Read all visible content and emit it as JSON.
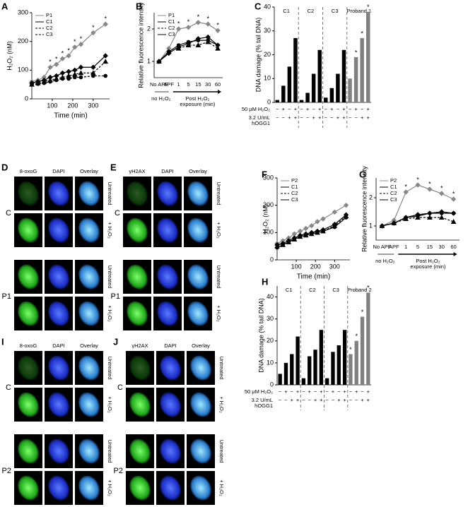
{
  "chart_data": [
    {
      "panel": "A",
      "type": "line",
      "ylabel": "H₂O₂ (nM)",
      "xlabel": "Time (min)",
      "x": [
        0,
        30,
        60,
        90,
        120,
        150,
        180,
        210,
        240,
        300,
        360
      ],
      "xlim": [
        0,
        380
      ],
      "xticks": [
        100,
        200,
        300
      ],
      "ylim": [
        0,
        300
      ],
      "yticks": [
        0,
        100,
        200,
        300
      ],
      "series": [
        {
          "name": "P1",
          "color": "#888888",
          "marker": "diamond",
          "dash": false,
          "values": [
            60,
            65,
            75,
            110,
            120,
            140,
            150,
            180,
            190,
            230,
            260
          ]
        },
        {
          "name": "C1",
          "color": "#000000",
          "marker": "diamond",
          "dash": false,
          "values": [
            55,
            60,
            65,
            75,
            80,
            90,
            95,
            100,
            110,
            110,
            150
          ]
        },
        {
          "name": "C2",
          "color": "#000000",
          "marker": "triangle",
          "dash": true,
          "values": [
            50,
            55,
            60,
            65,
            70,
            75,
            80,
            85,
            90,
            90,
            130
          ]
        },
        {
          "name": "C3",
          "color": "#000000",
          "marker": "circle",
          "dash": true,
          "values": [
            50,
            52,
            55,
            60,
            65,
            70,
            70,
            75,
            75,
            80,
            80
          ]
        }
      ],
      "annotations": [
        null,
        null,
        null,
        "*",
        "*",
        "*",
        "*",
        "*",
        "*",
        "*",
        "*"
      ]
    },
    {
      "panel": "B",
      "type": "line",
      "ylabel": "Relative fluorescence intensity",
      "categories": [
        "No APF",
        "APF",
        "1",
        "5",
        "15",
        "30",
        "60"
      ],
      "x_groups": [
        {
          "label": [
            "no H₂O₂"
          ],
          "span": [
            0,
            1
          ]
        },
        {
          "label": [
            "Post H₂O₂",
            "exposure (min)"
          ],
          "span": [
            1,
            6
          ]
        }
      ],
      "ylim": [
        0.5,
        2.5
      ],
      "yticks": [
        1,
        2
      ],
      "series": [
        {
          "name": "P1",
          "color": "#888888",
          "marker": "diamond",
          "dash": false,
          "values": [
            1.0,
            1.4,
            2.0,
            2.05,
            2.2,
            2.15,
            1.95
          ]
        },
        {
          "name": "C1",
          "color": "#000000",
          "marker": "diamond",
          "dash": false,
          "values": [
            1.0,
            1.25,
            1.45,
            1.55,
            1.7,
            1.75,
            1.5
          ]
        },
        {
          "name": "C2",
          "color": "#000000",
          "marker": "triangle",
          "dash": true,
          "values": [
            1.0,
            1.3,
            1.4,
            1.5,
            1.5,
            1.6,
            1.4
          ]
        },
        {
          "name": "C3",
          "color": "#000000",
          "marker": "circle",
          "dash": false,
          "values": [
            1.0,
            1.3,
            1.5,
            1.6,
            1.65,
            1.65,
            1.5
          ]
        }
      ],
      "annotations": [
        null,
        null,
        "*",
        "*",
        "*",
        "*",
        "*"
      ]
    },
    {
      "panel": "C",
      "type": "bar",
      "ylabel": "DNA damage (% tail DNA)",
      "ylim": [
        0,
        40
      ],
      "yticks": [
        0,
        10,
        20,
        30,
        40
      ],
      "groups": [
        {
          "name": "C1",
          "color": "#000000",
          "values": [
            1,
            7,
            15,
            27
          ],
          "annotations": [
            null,
            null,
            null,
            null
          ]
        },
        {
          "name": "C2",
          "color": "#000000",
          "values": [
            1,
            4,
            12,
            22
          ],
          "annotations": [
            null,
            null,
            null,
            null
          ]
        },
        {
          "name": "C3",
          "color": "#000000",
          "values": [
            2,
            6,
            12,
            22
          ],
          "annotations": [
            null,
            null,
            null,
            null
          ]
        },
        {
          "name": "Proband 1",
          "color": "#808080",
          "values": [
            10,
            19,
            27,
            38
          ],
          "annotations": [
            null,
            "*",
            "*",
            "*"
          ]
        }
      ],
      "conditions": [
        {
          "label": [
            "50 µM H₂O₂"
          ],
          "signs": [
            "−",
            "+",
            "−",
            "+"
          ]
        },
        {
          "label": [
            "3.2 U/mL",
            "hOGG1"
          ],
          "signs": [
            "−",
            "−",
            "+",
            "+"
          ]
        }
      ]
    },
    {
      "panel": "F",
      "type": "line",
      "ylabel": "H₂O₂ (nM)",
      "xlabel": "Time (min)",
      "x": [
        0,
        30,
        60,
        90,
        120,
        150,
        180,
        210,
        240,
        300,
        360
      ],
      "xlim": [
        0,
        380
      ],
      "xticks": [
        100,
        200,
        300
      ],
      "ylim": [
        0,
        300
      ],
      "yticks": [
        0,
        100,
        200,
        300
      ],
      "series": [
        {
          "name": "P2",
          "color": "#888888",
          "marker": "diamond",
          "dash": false,
          "values": [
            60,
            70,
            80,
            95,
            105,
            115,
            125,
            140,
            150,
            175,
            200
          ]
        },
        {
          "name": "C1",
          "color": "#000000",
          "marker": "diamond",
          "dash": false,
          "values": [
            55,
            60,
            70,
            80,
            90,
            95,
            100,
            105,
            110,
            130,
            165
          ]
        },
        {
          "name": "C2",
          "color": "#000000",
          "marker": "triangle",
          "dash": true,
          "values": [
            50,
            55,
            65,
            75,
            85,
            90,
            95,
            100,
            105,
            125,
            160
          ]
        },
        {
          "name": "C3",
          "color": "#000000",
          "marker": "circle",
          "dash": false,
          "values": [
            45,
            55,
            65,
            75,
            85,
            90,
            95,
            100,
            105,
            120,
            155
          ]
        }
      ]
    },
    {
      "panel": "G",
      "type": "line",
      "ylabel": "Relative fluorescence intensity",
      "categories": [
        "No APF",
        "APF",
        "1",
        "5",
        "15",
        "30",
        "60"
      ],
      "x_groups": [
        {
          "label": [
            "no H₂O₂"
          ],
          "span": [
            0,
            1
          ]
        },
        {
          "label": [
            "Post H₂O₂",
            "exposure (min)"
          ],
          "span": [
            1,
            6
          ]
        }
      ],
      "ylim": [
        0.5,
        2.7
      ],
      "yticks": [
        1,
        2
      ],
      "series": [
        {
          "name": "P2",
          "color": "#888888",
          "marker": "diamond",
          "dash": false,
          "values": [
            1.0,
            1.2,
            2.2,
            2.45,
            2.3,
            2.15,
            1.95
          ]
        },
        {
          "name": "C1",
          "color": "#000000",
          "marker": "diamond",
          "dash": false,
          "values": [
            1.0,
            1.1,
            1.3,
            1.4,
            1.45,
            1.5,
            1.45
          ]
        },
        {
          "name": "C2",
          "color": "#000000",
          "marker": "triangle",
          "dash": true,
          "values": [
            1.0,
            1.1,
            1.25,
            1.3,
            1.3,
            1.3,
            1.15
          ]
        },
        {
          "name": "C3",
          "color": "#000000",
          "marker": "circle",
          "dash": false,
          "values": [
            1.0,
            1.1,
            1.3,
            1.35,
            1.45,
            1.45,
            1.45
          ]
        }
      ],
      "annotations": [
        null,
        null,
        "*",
        "*",
        "*",
        "*",
        "*"
      ]
    },
    {
      "panel": "H",
      "type": "bar",
      "ylabel": "DNA damage (% tail DNA)",
      "ylim": [
        0,
        45
      ],
      "yticks": [
        0,
        10,
        20,
        30,
        40
      ],
      "groups": [
        {
          "name": "C1",
          "color": "#000000",
          "values": [
            5,
            10,
            14,
            22
          ],
          "annotations": [
            null,
            null,
            null,
            null
          ]
        },
        {
          "name": "C2",
          "color": "#000000",
          "values": [
            3,
            13,
            16,
            25
          ],
          "annotations": [
            null,
            null,
            null,
            null
          ]
        },
        {
          "name": "C3",
          "color": "#000000",
          "values": [
            3,
            15,
            18,
            25
          ],
          "annotations": [
            null,
            null,
            null,
            null
          ]
        },
        {
          "name": "Proband 2",
          "color": "#808080",
          "values": [
            14,
            20,
            31,
            42
          ],
          "annotations": [
            "*",
            "*",
            "*",
            "*"
          ]
        }
      ],
      "conditions": [
        {
          "label": [
            "50 µM H₂O₂"
          ],
          "signs": [
            "−",
            "+",
            "−",
            "+"
          ]
        },
        {
          "label": [
            "3.2 U/mL",
            "hOGG1"
          ],
          "signs": [
            "−",
            "−",
            "+",
            "+"
          ]
        }
      ]
    }
  ],
  "image_panels": [
    {
      "panel": "D",
      "columns": [
        "8-oxoG",
        "DAPI",
        "Overlay"
      ],
      "blocks": [
        {
          "label": "C",
          "rows": [
            "Untreated",
            "+ H₂O₂"
          ]
        },
        {
          "label": "P1",
          "rows": [
            "Untreated",
            "+ H₂O₂"
          ]
        }
      ]
    },
    {
      "panel": "E",
      "columns": [
        "γH2AX",
        "DAPI",
        "Overlay"
      ],
      "blocks": [
        {
          "label": "C",
          "rows": [
            "Untreated",
            "+ H₂O₂"
          ]
        },
        {
          "label": "P1",
          "rows": [
            "Untreated",
            "+ H₂O₂"
          ]
        }
      ]
    },
    {
      "panel": "I",
      "columns": [
        "8-oxoG",
        "DAPI",
        "Overlay"
      ],
      "blocks": [
        {
          "label": "C",
          "rows": [
            "Untreated",
            "+ H₂O₂"
          ]
        },
        {
          "label": "P2",
          "rows": [
            "Untreated",
            "+ H₂O₂"
          ]
        }
      ]
    },
    {
      "panel": "J",
      "columns": [
        "γH2AX",
        "DAPI",
        "Overlay"
      ],
      "blocks": [
        {
          "label": "C",
          "rows": [
            "Untreated",
            "+ H₂O₂"
          ]
        },
        {
          "label": "P2",
          "rows": [
            "Untreated",
            "+ H₂O₂"
          ]
        }
      ]
    }
  ]
}
